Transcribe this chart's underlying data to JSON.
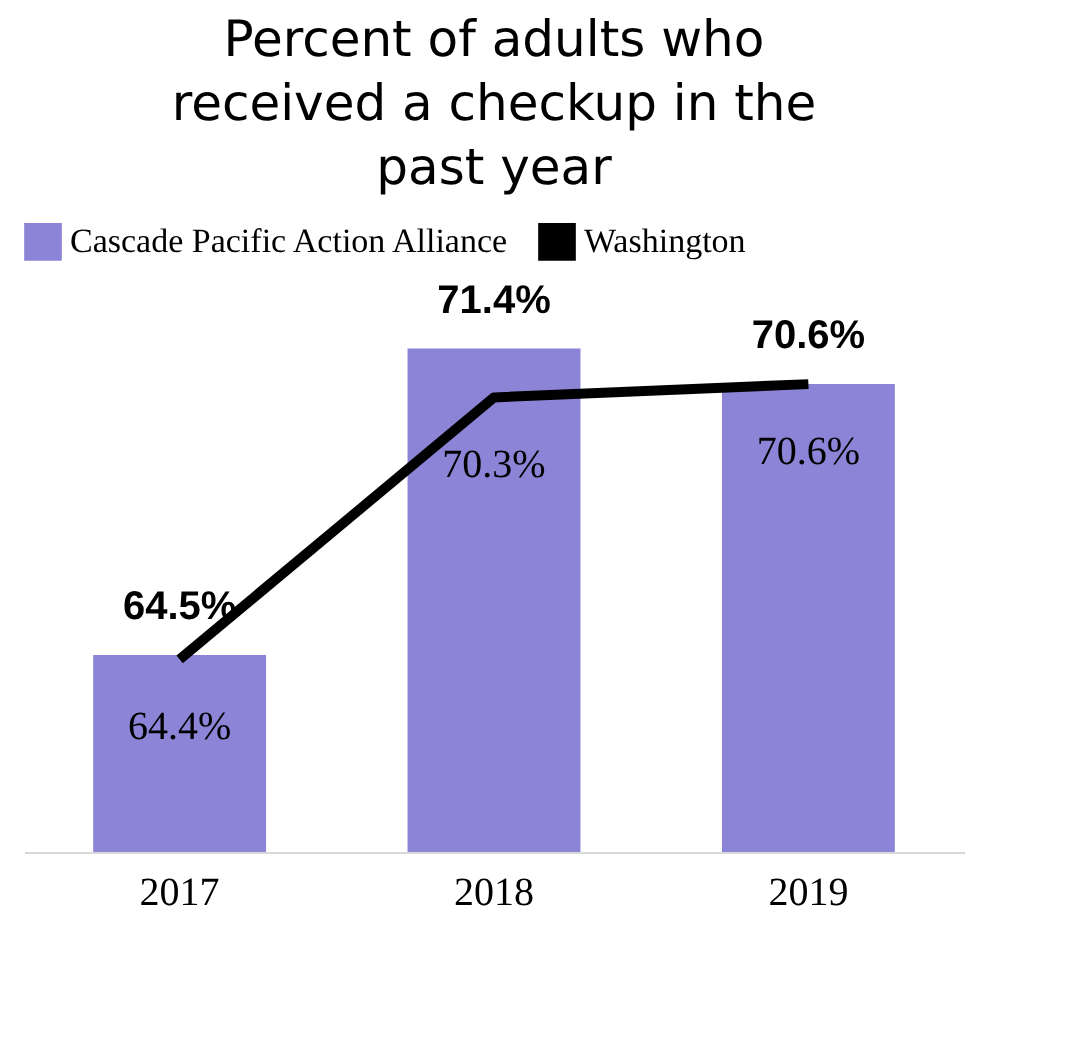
{
  "chart_data": {
    "type": "bar",
    "title": [
      "Percent of adults who",
      "received a checkup in the",
      "past year"
    ],
    "categories": [
      "2017",
      "2018",
      "2019"
    ],
    "series": [
      {
        "name": "Cascade Pacific Action Alliance",
        "color": "#8c84d6",
        "values": [
          64.5,
          71.4,
          70.6
        ],
        "value_labels": [
          "64.5%",
          "71.4%",
          "70.6%"
        ]
      },
      {
        "name": "Washington",
        "type": "line",
        "color": "#000000",
        "values": [
          64.4,
          70.3,
          70.6
        ],
        "value_labels": [
          "64.4%",
          "70.3%",
          "70.6%"
        ]
      }
    ],
    "legend": "top",
    "tick_labels": "x"
  }
}
